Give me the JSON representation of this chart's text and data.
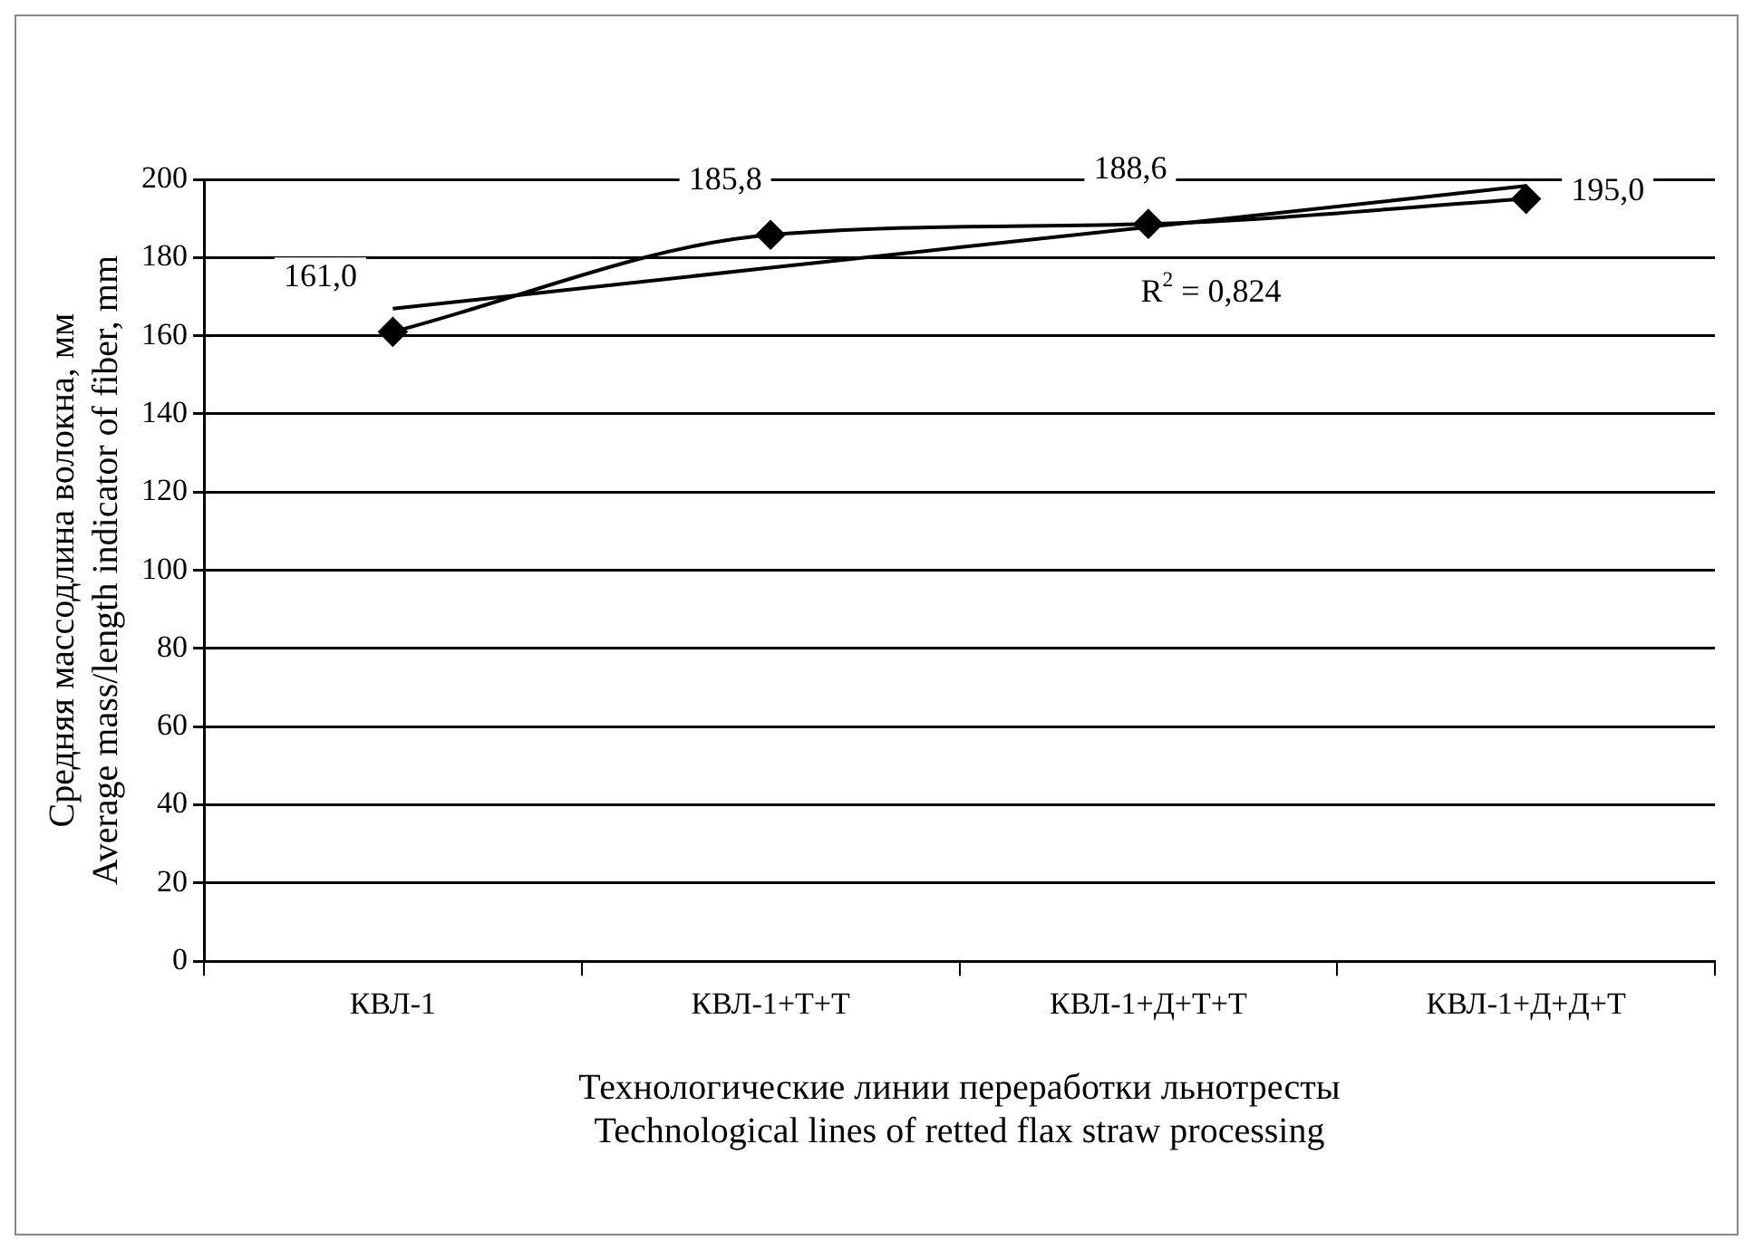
{
  "chart_data": {
    "type": "line",
    "xlabel": "Технологические линии переработки льнотресты\nTechnological lines of retted flax straw processing",
    "ylabel": "Средняя массодлина волокна, мм\nAverage mass/length indicator of fiber, mm",
    "categories": [
      "КВЛ-1",
      "КВЛ-1+Т+Т",
      "КВЛ-1+Д+Т+Т",
      "КВЛ-1+Д+Д+Т"
    ],
    "series": [
      {
        "color": "#000000",
        "values": [
          161.0,
          185.8,
          188.6,
          195.0
        ],
        "value_labels": [
          "161,0",
          "185,8",
          "188,6",
          "195,0"
        ],
        "marker": "diamond"
      },
      {
        "type": "line",
        "color": "#000000",
        "values": [
          166.9,
          177.4,
          187.8,
          198.3
        ],
        "marker": "none"
      }
    ],
    "ylim": [
      0,
      200
    ],
    "yticks": [
      0,
      20,
      40,
      60,
      80,
      100,
      120,
      140,
      160,
      180,
      200
    ],
    "grid": "y",
    "legend": false,
    "line_style": "solid",
    "annotations": [
      "R$^{2}$ = 0,824"
    ]
  }
}
